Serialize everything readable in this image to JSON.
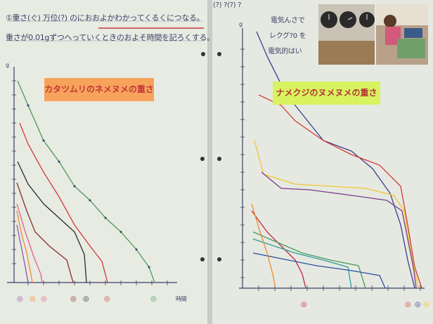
{
  "notes": {
    "line1": "①重さ(ぐ) 万位(?) のにおおよかわかってくるくにつなる。",
    "line2": "重さが0.01gずつへっていくときのおよそ時間を記ろくする。",
    "right_top": "(?) ?(?) ?",
    "right_note_1": "電気んさで",
    "right_note_2": "レクグ?0 を",
    "right_note_3": "電気的はい"
  },
  "left_panel": {
    "title": "カタツムリのネメヌメの重さ",
    "unit_label": "g",
    "xunit_label": "時間"
  },
  "right_panel": {
    "title": "ナメクジのヌメヌメの重さ",
    "unit_label": "g"
  },
  "photos": [
    {
      "name": "clocks-photo"
    },
    {
      "name": "child-photo"
    }
  ],
  "colors": {
    "paper": "#ecefe3",
    "board": "#d6d9d3",
    "title_left_bg": "#f7a35c",
    "title_right_bg": "#d9f25f"
  }
}
